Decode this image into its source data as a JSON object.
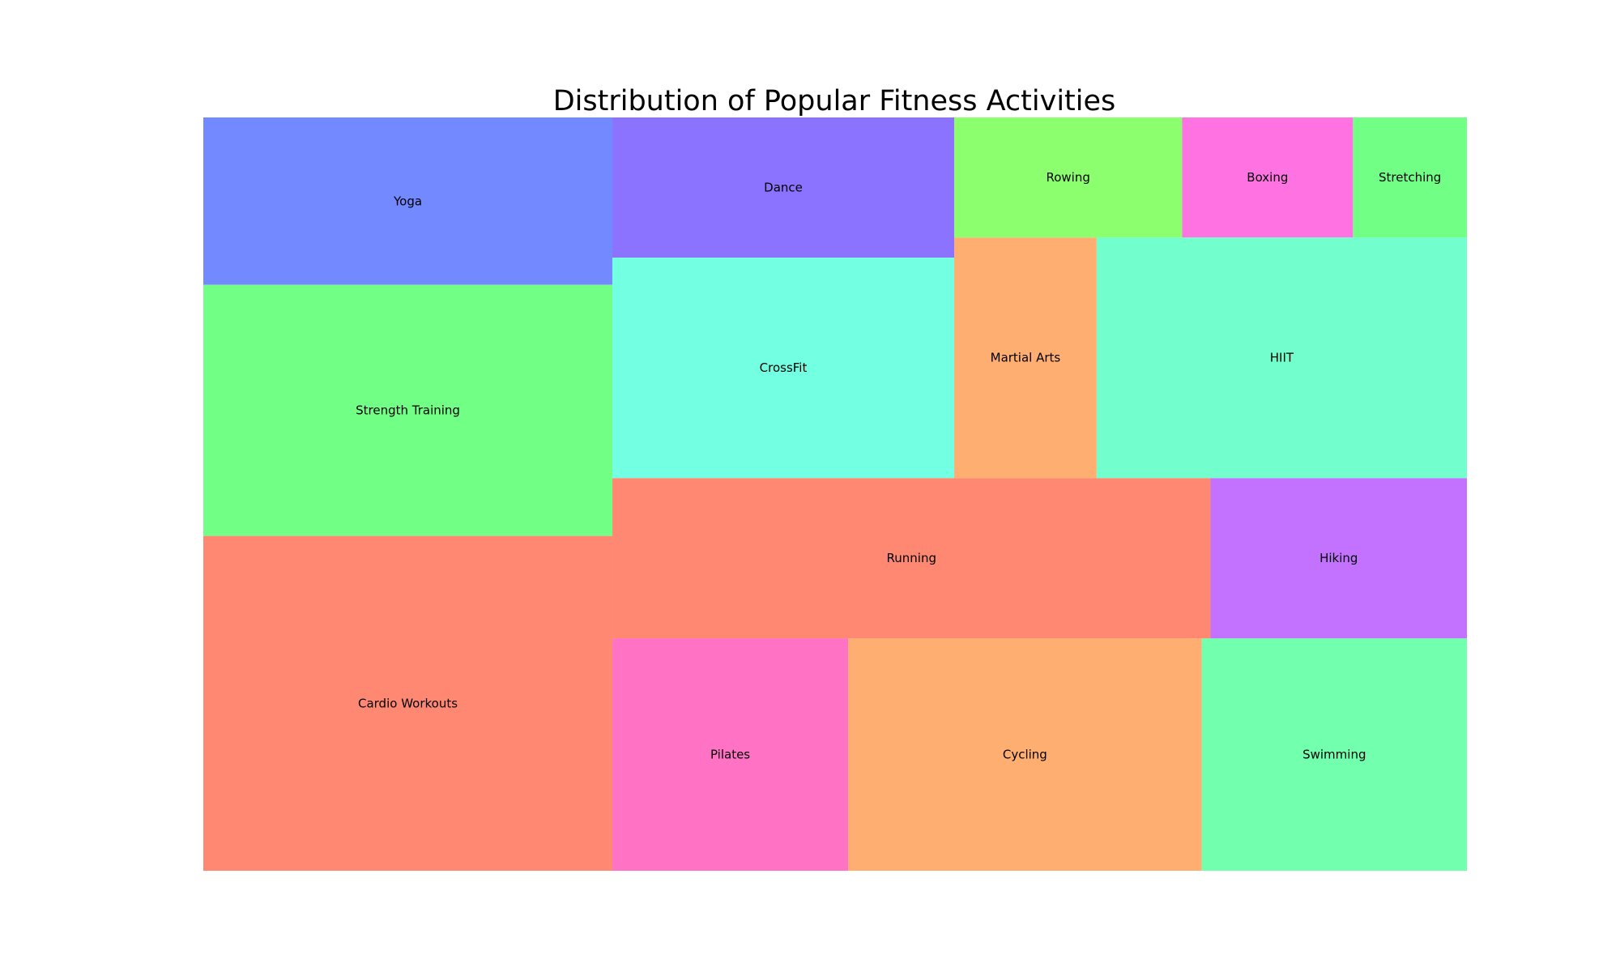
{
  "chart_data": {
    "type": "treemap",
    "title": "Distribution of Popular Fitness Activities",
    "unit": "relative share (estimated from tile area)",
    "columns": [
      {
        "items": [
          {
            "label": "Yoga",
            "value": 10,
            "color": "#7289ff"
          },
          {
            "label": "Strength Training",
            "value": 15,
            "color": "#72ff85"
          },
          {
            "label": "Cardio Workouts",
            "value": 20,
            "color": "#ff8872"
          }
        ]
      },
      {
        "items": [
          {
            "group": [
              {
                "label": "Dance",
                "value": 7,
                "color": "#8b72ff"
              },
              {
                "label": "CrossFit",
                "value": 11,
                "color": "#72ffe2"
              }
            ]
          },
          {
            "group": [
              {
                "stack": [
                  {
                    "label": "Rowing",
                    "value": 4,
                    "color": "#8bff6d"
                  },
                  {
                    "label": "Martial Arts",
                    "value": 5,
                    "color": "#ffae72"
                  }
                ]
              },
              {
                "label": "Boxing",
                "value": 3,
                "color": "#ff72e2"
              },
              {
                "label": "Stretching",
                "value": 2,
                "color": "#72ff85"
              },
              {
                "label": "HIIT",
                "value": 13,
                "color": "#72ffcd"
              }
            ]
          }
        ]
      },
      {
        "items": [
          {
            "label": "Running",
            "value": 14,
            "color": "#ff8872"
          },
          {
            "label": "Hiking",
            "value": 6,
            "color": "#c372ff"
          }
        ]
      },
      {
        "items": [
          {
            "label": "Pilates",
            "value": 8,
            "color": "#ff72c4"
          },
          {
            "label": "Cycling",
            "value": 12,
            "color": "#ffae72"
          },
          {
            "label": "Swimming",
            "value": 9,
            "color": "#72ffae"
          }
        ]
      }
    ]
  }
}
